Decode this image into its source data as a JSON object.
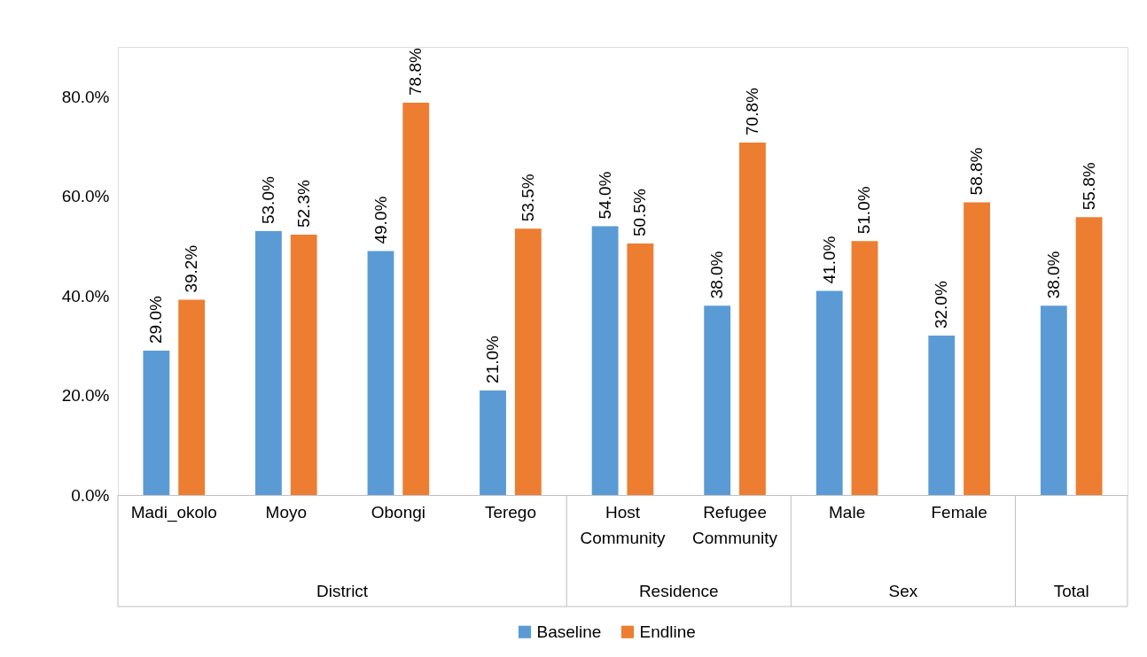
{
  "chart_data": {
    "type": "bar",
    "categories": [
      "Madi_okolo",
      "Moyo",
      "Obongi",
      "Terego",
      "Host Community",
      "Refugee Community",
      "Male",
      "Female",
      null
    ],
    "series": [
      {
        "name": "Baseline",
        "color": "#5b9bd5",
        "values": [
          29.0,
          53.0,
          49.0,
          21.0,
          54.0,
          38.0,
          41.0,
          32.0,
          38.0
        ],
        "value_labels": [
          "29.0%",
          "53.0%",
          "49.0%",
          "21.0%",
          "54.0%",
          "38.0%",
          "41.0%",
          "32.0%",
          "38.0%"
        ]
      },
      {
        "name": "Endline",
        "color": "#ed7d31",
        "values": [
          39.2,
          52.3,
          78.8,
          53.5,
          50.5,
          70.8,
          51.0,
          58.8,
          55.8
        ],
        "value_labels": [
          "39.2%",
          "52.3%",
          "78.8%",
          "53.5%",
          "50.5%",
          "70.8%",
          "51.0%",
          "58.8%",
          "55.8%"
        ]
      }
    ],
    "annotations": [
      "District",
      "Residence",
      "Sex",
      "Total"
    ],
    "ylim": [
      0,
      90
    ],
    "yticks": [
      {
        "value": 0,
        "label": "0.0%"
      },
      {
        "value": 20,
        "label": "20.0%"
      },
      {
        "value": 40,
        "label": "40.0%"
      },
      {
        "value": 60,
        "label": "60.0%"
      },
      {
        "value": 80,
        "label": "80.0%"
      }
    ],
    "grid": false,
    "legend": "bottom"
  }
}
